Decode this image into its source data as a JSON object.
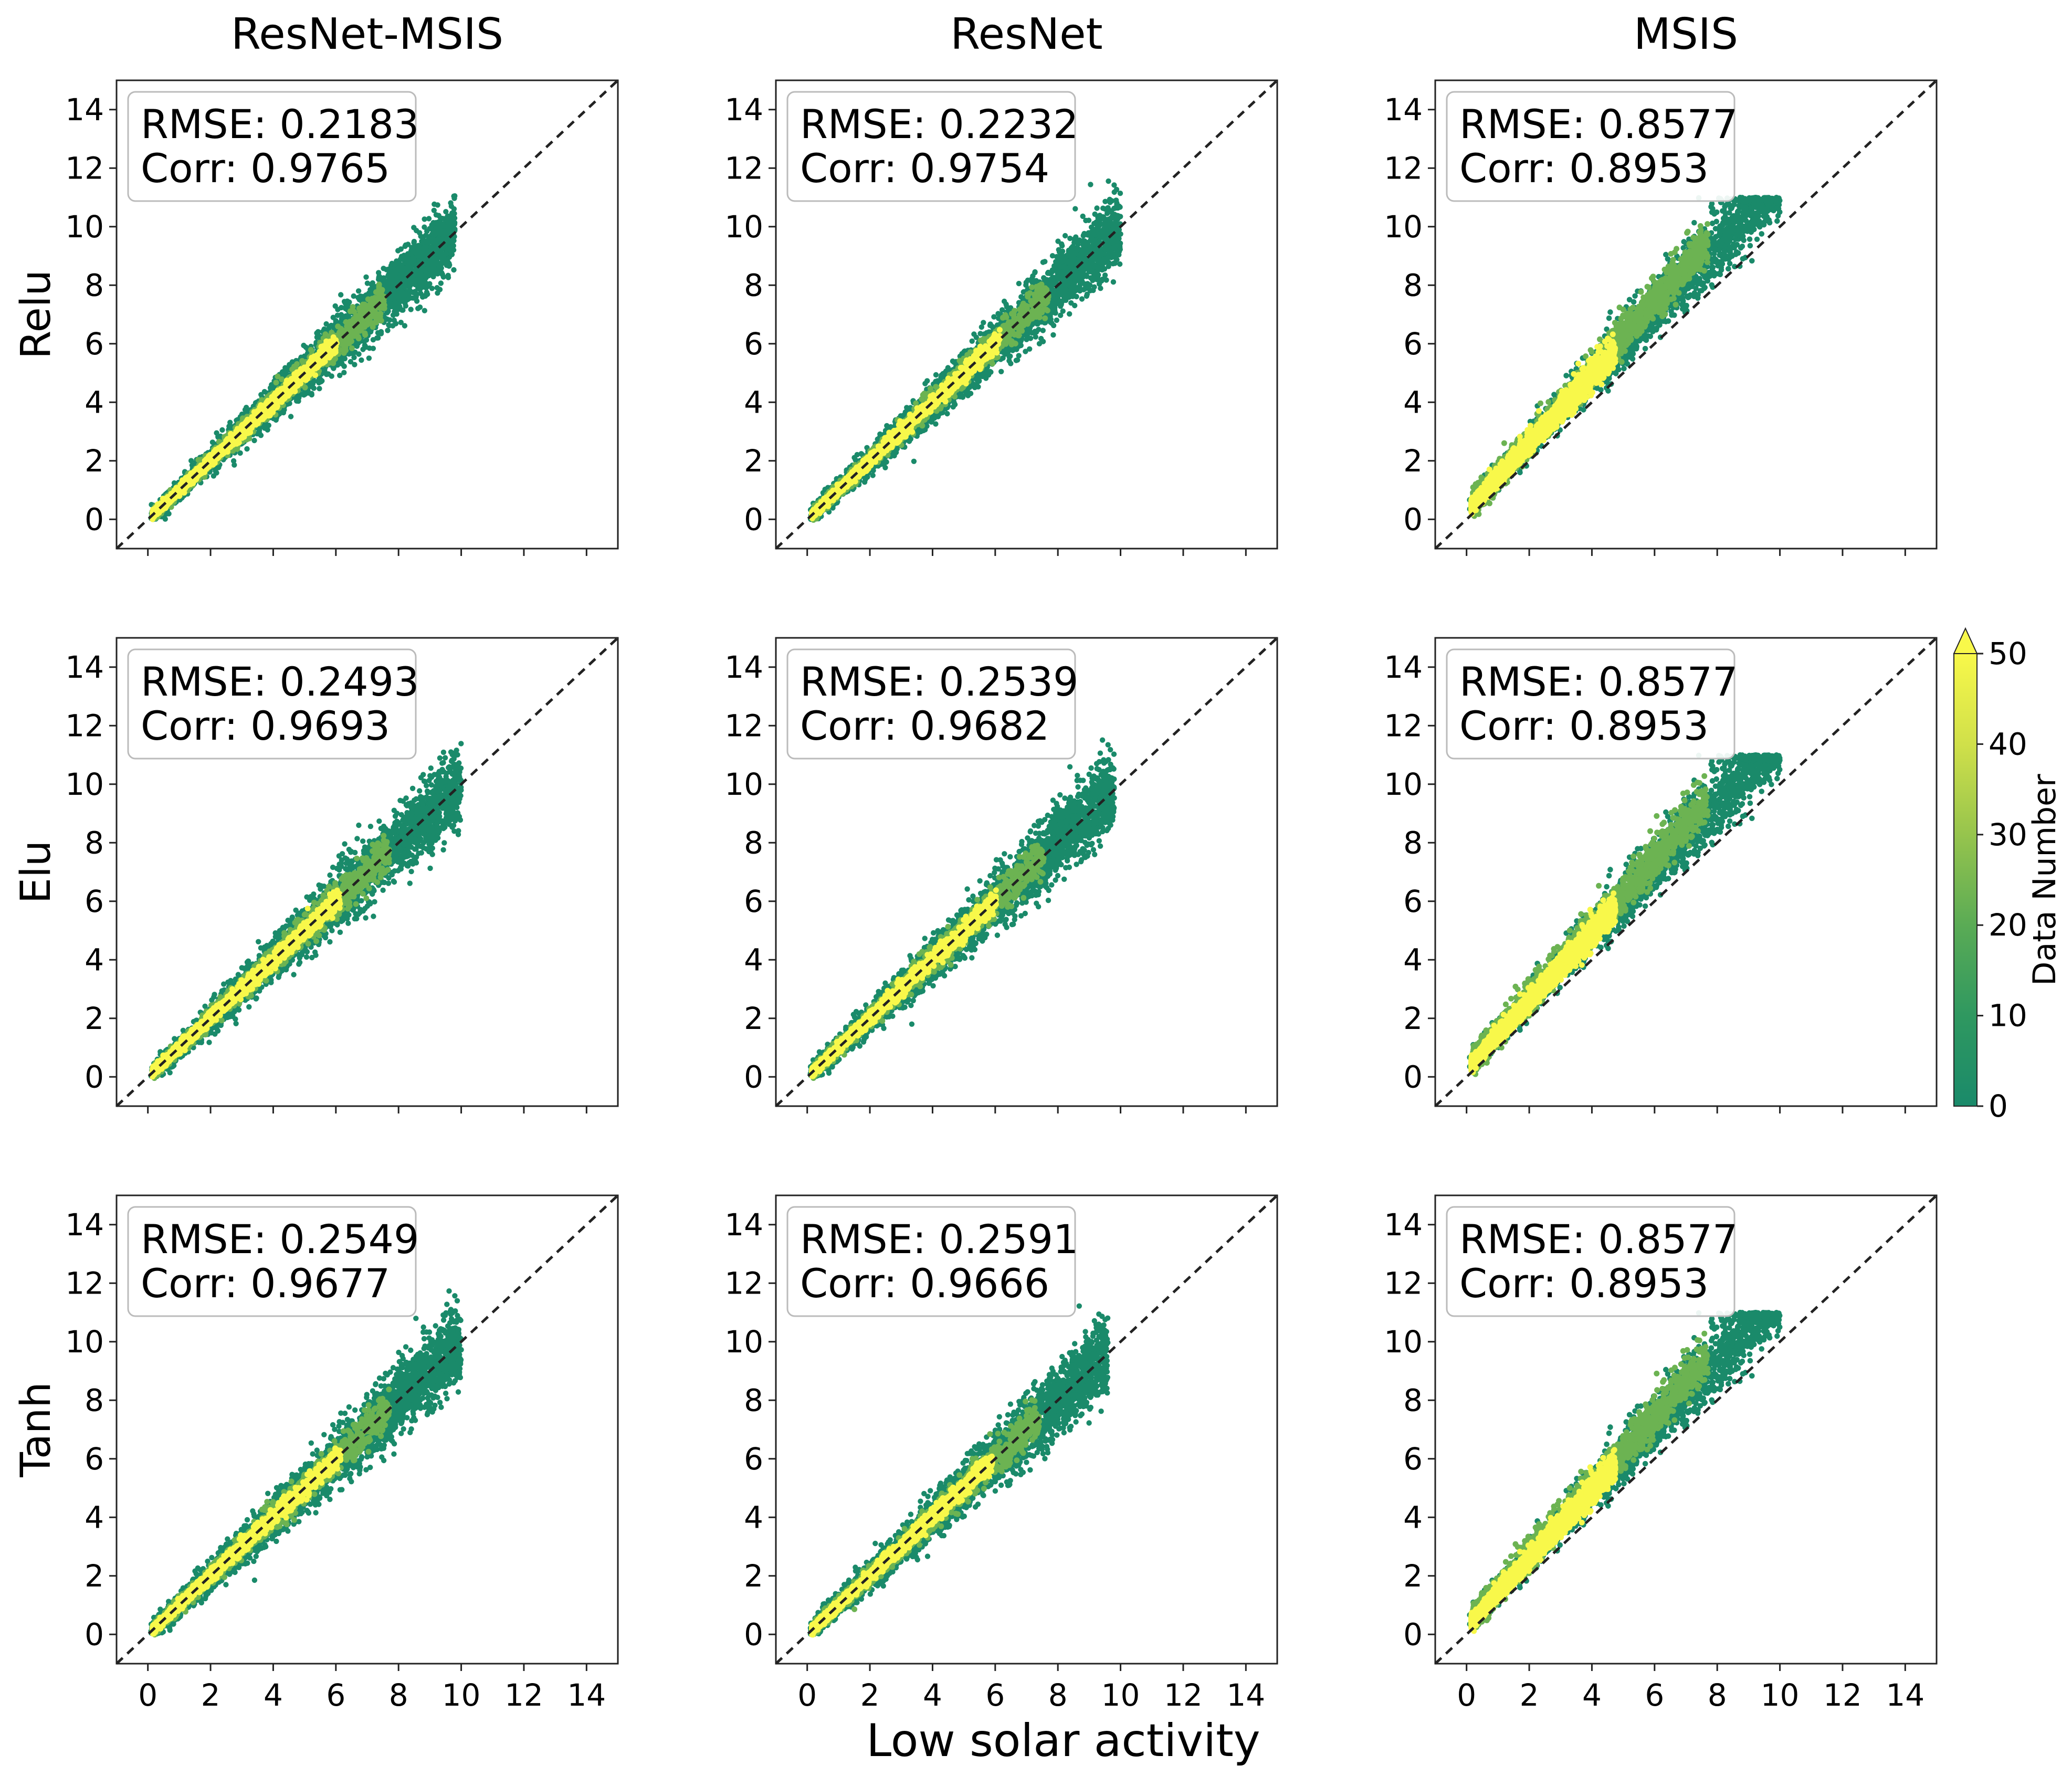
{
  "chart_data": {
    "type": "heatmap",
    "subtype": "hexbin density scatter grid (3 rows x 3 columns)",
    "column_titles": [
      "ResNet-MSIS",
      "ResNet",
      "MSIS"
    ],
    "row_labels": [
      "Relu",
      "Elu",
      "Tanh"
    ],
    "xlabel": "Low solar activity",
    "xlim": [
      -1,
      15
    ],
    "ylim": [
      -1,
      15
    ],
    "x_ticks": [
      "0",
      "2",
      "4",
      "6",
      "8",
      "10",
      "12",
      "14"
    ],
    "y_ticks": [
      "0",
      "2",
      "4",
      "6",
      "8",
      "10",
      "12",
      "14"
    ],
    "reference_line": "y = x (dashed)",
    "panels": [
      [
        {
          "rmse_label": "RMSE:",
          "rmse": "0.2183",
          "corr_label": "Corr:",
          "corr": "0.9765",
          "xmax": 9.8,
          "spread": 0.55
        },
        {
          "rmse_label": "RMSE:",
          "rmse": "0.2232",
          "corr_label": "Corr:",
          "corr": "0.9754",
          "xmax": 10.0,
          "spread": 0.55
        },
        {
          "rmse_label": "RMSE:",
          "rmse": "0.8577",
          "corr_label": "Corr:",
          "corr": "0.8953",
          "xmax": 10.0,
          "spread": 1.9
        }
      ],
      [
        {
          "rmse_label": "RMSE:",
          "rmse": "0.2493",
          "corr_label": "Corr:",
          "corr": "0.9693",
          "xmax": 10.0,
          "spread": 0.6
        },
        {
          "rmse_label": "RMSE:",
          "rmse": "0.2539",
          "corr_label": "Corr:",
          "corr": "0.9682",
          "xmax": 9.8,
          "spread": 0.6
        },
        {
          "rmse_label": "RMSE:",
          "rmse": "0.8577",
          "corr_label": "Corr:",
          "corr": "0.8953",
          "xmax": 10.0,
          "spread": 1.9
        }
      ],
      [
        {
          "rmse_label": "RMSE:",
          "rmse": "0.2549",
          "corr_label": "Corr:",
          "corr": "0.9677",
          "xmax": 10.0,
          "spread": 0.6
        },
        {
          "rmse_label": "RMSE:",
          "rmse": "0.2591",
          "corr_label": "Corr:",
          "corr": "0.9666",
          "xmax": 9.6,
          "spread": 0.6
        },
        {
          "rmse_label": "RMSE:",
          "rmse": "0.8577",
          "corr_label": "Corr:",
          "corr": "0.8953",
          "xmax": 10.0,
          "spread": 1.9
        }
      ]
    ],
    "colorbar": {
      "label": "Data Number",
      "range": [
        0,
        50
      ],
      "ticks": [
        "0",
        "10",
        "20",
        "30",
        "40",
        "50"
      ],
      "extend": "max",
      "colors": [
        "#1a8a6a",
        "#3a9e5e",
        "#6cb352",
        "#a8cc4a",
        "#dce64a",
        "#f8f84a"
      ]
    },
    "colors": {
      "low_density": "#1a8a6a",
      "high_density": "#f8f84a",
      "reference_line": "#222222",
      "box_border": "#bbbbbb"
    }
  }
}
